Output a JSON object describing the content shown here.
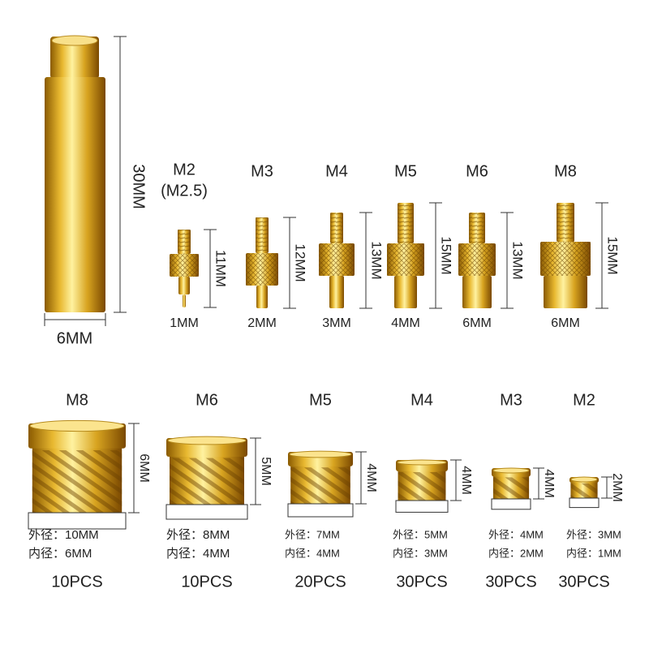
{
  "rod": {
    "length": "30MM",
    "diameter": "6MM"
  },
  "tips": [
    {
      "thread": "M2",
      "alt": "(M2.5)",
      "height": "11MM",
      "pin": "1MM"
    },
    {
      "thread": "M3",
      "height": "12MM",
      "pin": "2MM"
    },
    {
      "thread": "M4",
      "height": "13MM",
      "pin": "3MM"
    },
    {
      "thread": "M5",
      "height": "15MM",
      "pin": "4MM"
    },
    {
      "thread": "M6",
      "height": "13MM",
      "pin": "6MM"
    },
    {
      "thread": "M8",
      "height": "15MM",
      "pin": "6MM"
    }
  ],
  "inserts": [
    {
      "thread": "M8",
      "height": "6MM",
      "outer": "外径：10MM",
      "inner": "内径：6MM",
      "quantity": "10PCS"
    },
    {
      "thread": "M6",
      "height": "5MM",
      "outer": "外径：8MM",
      "inner": "内径：4MM",
      "quantity": "10PCS"
    },
    {
      "thread": "M5",
      "height": "4MM",
      "outer": "外径：7MM",
      "inner": "内径：4MM",
      "quantity": "20PCS"
    },
    {
      "thread": "M4",
      "height": "4MM",
      "outer": "外径：5MM",
      "inner": "内径：3MM",
      "quantity": "30PCS"
    },
    {
      "thread": "M3",
      "height": "4MM",
      "outer": "外径：4MM",
      "inner": "内径：2MM",
      "quantity": "30PCS"
    },
    {
      "thread": "M2",
      "height": "2MM",
      "outer": "外径：3MM",
      "inner": "内径：1MM",
      "quantity": "30PCS"
    }
  ]
}
